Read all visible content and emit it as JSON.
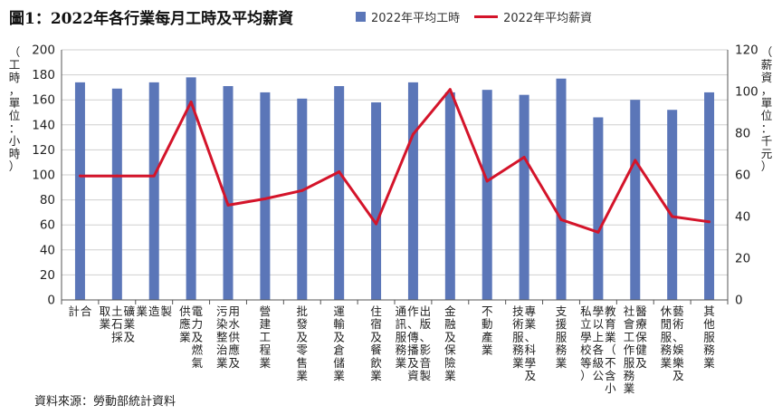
{
  "title": "圖1：2022年各行業每月工時及平均薪資",
  "source": "資料來源：勞動部統計資料",
  "chart_data": {
    "type": "bar+line",
    "title": "圖1：2022年各行業每月工時及平均薪資",
    "categories": [
      "合計",
      "礦業及土石採取業",
      "製造業",
      "電力及燃氣供應業",
      "用水供應及污染整治業",
      "營建工程業",
      "批發及零售業",
      "運輸及倉儲業",
      "住宿及餐飲業",
      "出版影音製作傳播及資通訊服務業",
      "金融及保險業",
      "不動產業",
      "專業、科學及技術服務業",
      "支援服務業",
      "教育業（不含小學以上各級公私立學校等）",
      "醫療保健及社會工作服務業",
      "藝術、娛樂及休閒服務業",
      "其他服務業"
    ],
    "category_lines": [
      [
        "合",
        "計"
      ],
      [
        "礦業及",
        "土石採",
        "取業"
      ],
      [
        "製",
        "造",
        "業"
      ],
      [
        "電力及燃氣",
        "供應業"
      ],
      [
        "用水供應及",
        "污染整治業"
      ],
      [
        "營",
        "建",
        "工",
        "程",
        "業"
      ],
      [
        "批",
        "發",
        "及",
        "零",
        "售",
        "業"
      ],
      [
        "運",
        "輸",
        "及",
        "倉",
        "儲",
        "業"
      ],
      [
        "住",
        "宿",
        "及",
        "餐",
        "飲",
        "業"
      ],
      [
        "出版、影音製",
        "作、傳播及資",
        "通訊服務業"
      ],
      [
        "金",
        "融",
        "及",
        "保",
        "險",
        "業"
      ],
      [
        "不",
        "動",
        "產",
        "業"
      ],
      [
        "專業、科學及",
        "技術服務業"
      ],
      [
        "支",
        "援",
        "服",
        "務",
        "業"
      ],
      [
        "教育業（不含小",
        "學以上各級公",
        "私立學校等）"
      ],
      [
        "醫療保健及",
        "社會工作服務業"
      ],
      [
        "藝術、娛樂及",
        "休閒服務業"
      ],
      [
        "其",
        "他",
        "服",
        "務",
        "業"
      ]
    ],
    "series": [
      {
        "name": "2022年平均工時",
        "type": "bar",
        "axis": "left",
        "color": "#5b76b8",
        "values": [
          174,
          169,
          174,
          178,
          171,
          166,
          161,
          171,
          158,
          174,
          166,
          168,
          164,
          177,
          146,
          160,
          152,
          166
        ]
      },
      {
        "name": "2022年平均薪資",
        "type": "line",
        "axis": "right",
        "color": "#d4142a",
        "values": [
          59.5,
          59.5,
          59.5,
          95,
          45.5,
          48.5,
          52.5,
          61.5,
          36.5,
          79.5,
          101,
          57,
          68.5,
          38.5,
          32.5,
          67,
          40,
          37.5
        ]
      }
    ],
    "ylabel": "（工時，單位：小時）",
    "ylabel2": "（薪資，單位：千元）",
    "ylim": [
      0,
      200
    ],
    "yticks": [
      0,
      20,
      40,
      60,
      80,
      100,
      120,
      140,
      160,
      180,
      200
    ],
    "ylim2": [
      0,
      120
    ],
    "yticks2": [
      0,
      20,
      40,
      60,
      80,
      100,
      120
    ],
    "legend_position": "top"
  }
}
